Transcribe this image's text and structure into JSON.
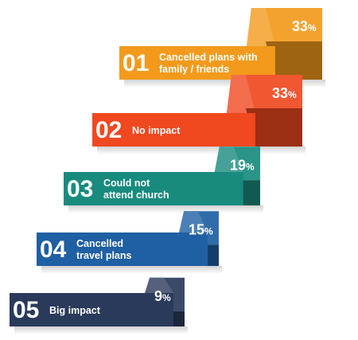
{
  "chart_data": {
    "type": "bar",
    "orientation": "horizontal",
    "style": "3d-ribbon",
    "categories": [
      {
        "rank": "01",
        "label": "Cancelled plans with family / friends",
        "value": 33,
        "display": "33",
        "color": "#f39a1c"
      },
      {
        "rank": "02",
        "label": "No impact",
        "value": 33,
        "display": "33",
        "color": "#f0481f"
      },
      {
        "rank": "03",
        "label": "Could not attend church",
        "value": 19,
        "display": "19",
        "color": "#188b7e"
      },
      {
        "rank": "04",
        "label": "Cancelled travel plans",
        "value": 15,
        "display": "15",
        "color": "#1f5fa3"
      },
      {
        "rank": "05",
        "label": "Big impact",
        "value": 9,
        "display": "9",
        "color": "#2a3a5b"
      }
    ],
    "value_suffix": "%",
    "grid": false
  }
}
